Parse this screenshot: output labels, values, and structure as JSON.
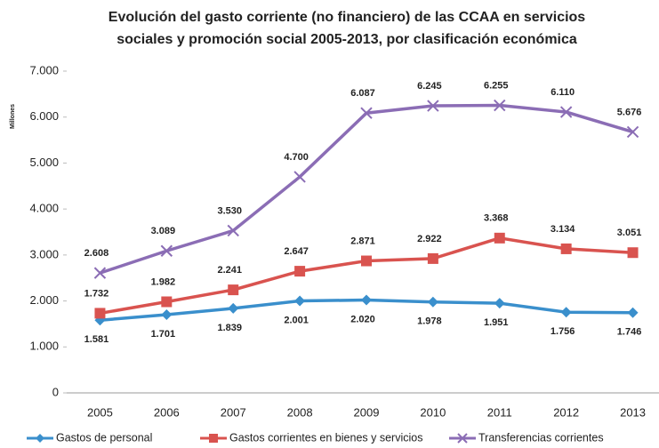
{
  "chart_data": {
    "type": "line",
    "title": [
      "Evolución del gasto corriente (no financiero) de las CCAA en servicios",
      "sociales y promoción social 2005-2013, por clasificación económica"
    ],
    "y_label": "Millones",
    "categories": [
      "2005",
      "2006",
      "2007",
      "2008",
      "2009",
      "2010",
      "2011",
      "2012",
      "2013"
    ],
    "ylim": [
      0,
      7000
    ],
    "yticks": [
      0,
      {
        "value": 1000,
        "label": "1.000"
      },
      {
        "value": 2000,
        "label": "2.000"
      },
      {
        "value": 3000,
        "label": "3.000"
      },
      {
        "value": 4000,
        "label": "4.000"
      },
      {
        "value": 5000,
        "label": "5.000"
      },
      {
        "value": 6000,
        "label": "6.000"
      },
      {
        "value": 7000,
        "label": "7.000"
      }
    ],
    "grid": false,
    "legend": "bottom",
    "series": [
      {
        "name": "Gastos de personal",
        "color": "#3a8fcc",
        "marker": "diamond",
        "label_side": "below",
        "values": [
          1581,
          1701,
          1839,
          2001,
          2020,
          1978,
          1951,
          1756,
          1746
        ],
        "value_labels": [
          "1.581",
          "1.701",
          "1.839",
          "2.001",
          "2.020",
          "1.978",
          "1.951",
          "1.756",
          "1.746"
        ]
      },
      {
        "name": "Gastos corrientes en bienes y servicios",
        "color": "#d9534f",
        "marker": "square",
        "label_side": "above",
        "values": [
          1732,
          1982,
          2241,
          2647,
          2871,
          2922,
          3368,
          3134,
          3051
        ],
        "value_labels": [
          "1.732",
          "1.982",
          "2.241",
          "2.647",
          "2.871",
          "2.922",
          "3.368",
          "3.134",
          "3.051"
        ]
      },
      {
        "name": "Transferencias corrientes",
        "color": "#8b6db5",
        "marker": "x",
        "label_side": "above",
        "values": [
          2608,
          3089,
          3530,
          4700,
          6087,
          6245,
          6255,
          6110,
          5676
        ],
        "value_labels": [
          "2.608",
          "3.089",
          "3.530",
          "4.700",
          "6.087",
          "6.245",
          "6.255",
          "6.110",
          "5.676"
        ]
      }
    ]
  }
}
